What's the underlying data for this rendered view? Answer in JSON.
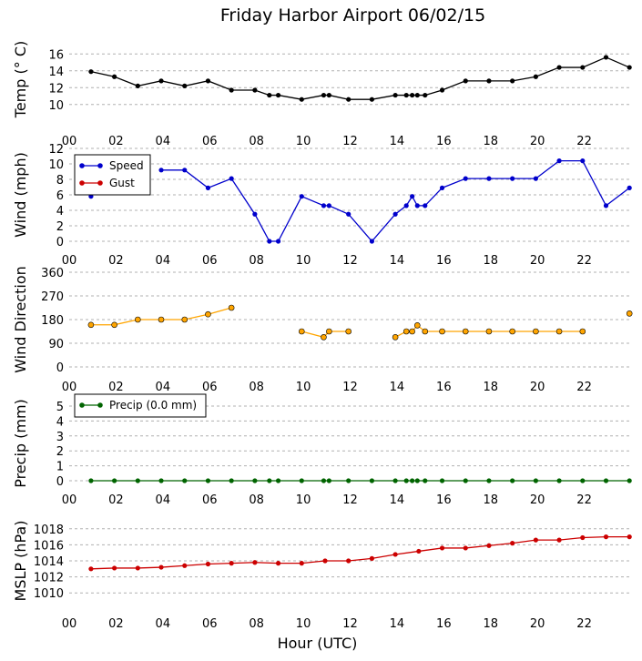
{
  "chart_data": {
    "title": "Friday Harbor Airport 06/02/15",
    "xlabel": "Hour (UTC)",
    "x_tick_labels": [
      "00",
      "02",
      "04",
      "06",
      "08",
      "10",
      "12",
      "14",
      "16",
      "18",
      "20",
      "22"
    ],
    "x_ticks": [
      0,
      2,
      4,
      6,
      8,
      10,
      12,
      14,
      16,
      18,
      20,
      22
    ],
    "xlim": [
      0,
      24
    ],
    "panels": [
      {
        "id": "temp",
        "type": "line",
        "ylabel": "Temp (° C)",
        "ylim": [
          9,
          17
        ],
        "yticks": [
          10,
          12,
          14,
          16
        ],
        "show_x_tick_labels": true,
        "series": [
          {
            "name": "Temp",
            "color": "#000000",
            "x": [
              0.93,
              1.93,
              2.93,
              3.93,
              4.93,
              5.93,
              6.93,
              7.93,
              8.55,
              8.93,
              9.93,
              10.87,
              11.1,
              11.93,
              12.93,
              13.93,
              14.4,
              14.65,
              14.87,
              15.2,
              15.93,
              16.93,
              17.93,
              18.93,
              19.93,
              20.93,
              21.93,
              22.93,
              23.93
            ],
            "y": [
              13.9,
              13.3,
              12.2,
              12.8,
              12.2,
              12.8,
              11.7,
              11.7,
              11.1,
              11.1,
              10.6,
              11.1,
              11.1,
              10.6,
              10.6,
              11.1,
              11.1,
              11.1,
              11.1,
              11.1,
              11.7,
              12.8,
              12.8,
              12.8,
              13.3,
              14.4,
              14.4,
              15.6,
              14.4
            ]
          }
        ]
      },
      {
        "id": "wind",
        "type": "line",
        "ylabel": "Wind (mph)",
        "ylim": [
          0,
          12
        ],
        "yticks": [
          0,
          2,
          4,
          6,
          8,
          10,
          12
        ],
        "show_x_tick_labels": true,
        "legend": {
          "position": "upper-left",
          "entries": [
            "Speed",
            "Gust"
          ]
        },
        "series": [
          {
            "name": "Speed",
            "color": "#0000cc",
            "x": [
              0.93,
              1.93,
              2.93,
              3.93,
              4.93,
              5.93,
              6.93,
              7.93,
              8.55,
              8.93,
              9.93,
              10.87,
              11.1,
              11.93,
              12.93,
              13.93,
              14.4,
              14.65,
              14.87,
              15.2,
              15.93,
              16.93,
              17.93,
              18.93,
              19.93,
              20.93,
              21.93,
              22.93,
              23.93
            ],
            "y": [
              5.8,
              null,
              null,
              9.2,
              9.2,
              6.9,
              8.1,
              3.5,
              0,
              0,
              5.8,
              4.6,
              4.6,
              3.5,
              0,
              3.5,
              4.6,
              5.8,
              4.6,
              4.6,
              6.9,
              8.1,
              8.1,
              8.1,
              8.1,
              10.4,
              10.4,
              4.6,
              6.9
            ]
          },
          {
            "name": "Gust",
            "color": "#cc0000",
            "x": [],
            "y": []
          }
        ]
      },
      {
        "id": "wdir",
        "type": "line",
        "ylabel": "Wind Direction",
        "ylim": [
          0,
          360
        ],
        "yticks": [
          0,
          90,
          180,
          270,
          360
        ],
        "show_x_tick_labels": true,
        "series": [
          {
            "name": "Wind Direction",
            "color": "#ffa500",
            "x": [
              0.93,
              1.93,
              2.93,
              3.93,
              4.93,
              5.93,
              6.93,
              null,
              9.93,
              10.87,
              11.1,
              11.93,
              null,
              13.93,
              14.4,
              14.65,
              14.87,
              15.2,
              15.93,
              16.93,
              17.93,
              18.93,
              19.93,
              20.93,
              21.93,
              null,
              23.93
            ],
            "y": [
              160,
              160,
              180,
              180,
              180,
              200,
              225,
              null,
              135,
              113,
              135,
              135,
              null,
              113,
              135,
              135,
              158,
              135,
              135,
              135,
              135,
              135,
              135,
              135,
              135,
              null,
              203
            ]
          }
        ]
      },
      {
        "id": "precip",
        "type": "line",
        "ylabel": "Precip (mm)",
        "ylim": [
          0,
          5
        ],
        "yticks": [
          0,
          1,
          2,
          3,
          4,
          5
        ],
        "show_x_tick_labels": true,
        "legend": {
          "position": "upper-left",
          "entries": [
            "Precip (0.0 mm)"
          ]
        },
        "series": [
          {
            "name": "Precip (0.0 mm)",
            "color": "#006400",
            "x": [
              0.93,
              1.93,
              2.93,
              3.93,
              4.93,
              5.93,
              6.93,
              7.93,
              8.55,
              8.93,
              9.93,
              10.87,
              11.1,
              11.93,
              12.93,
              13.93,
              14.4,
              14.65,
              14.87,
              15.2,
              15.93,
              16.93,
              17.93,
              18.93,
              19.93,
              20.93,
              21.93,
              22.93,
              23.93
            ],
            "y": [
              0,
              0,
              0,
              0,
              0,
              0,
              0,
              0,
              0,
              0,
              0,
              0,
              0,
              0,
              0,
              0,
              0,
              0,
              0,
              0,
              0,
              0,
              0,
              0,
              0,
              0,
              0,
              0,
              0
            ]
          }
        ]
      },
      {
        "id": "mslp",
        "type": "line",
        "ylabel": "MSLP (hPa)",
        "ylim": [
          1009,
          1019
        ],
        "yticks": [
          1010,
          1012,
          1014,
          1016,
          1018
        ],
        "show_x_tick_labels": true,
        "series": [
          {
            "name": "MSLP",
            "color": "#cc0000",
            "x": [
              0.93,
              1.93,
              2.93,
              3.93,
              4.93,
              5.93,
              6.93,
              7.93,
              8.93,
              9.93,
              10.93,
              11.93,
              12.93,
              13.93,
              14.93,
              15.93,
              16.93,
              17.93,
              18.93,
              19.93,
              20.93,
              21.93,
              22.93,
              23.93
            ],
            "y": [
              1013.0,
              1013.1,
              1013.1,
              1013.2,
              1013.4,
              1013.6,
              1013.7,
              1013.8,
              1013.7,
              1013.7,
              1014.0,
              1014.0,
              1014.3,
              1014.8,
              1015.2,
              1015.6,
              1015.6,
              1015.9,
              1016.2,
              1016.6,
              1016.6,
              1016.9,
              1017.0,
              1017.0
            ]
          }
        ]
      }
    ]
  }
}
